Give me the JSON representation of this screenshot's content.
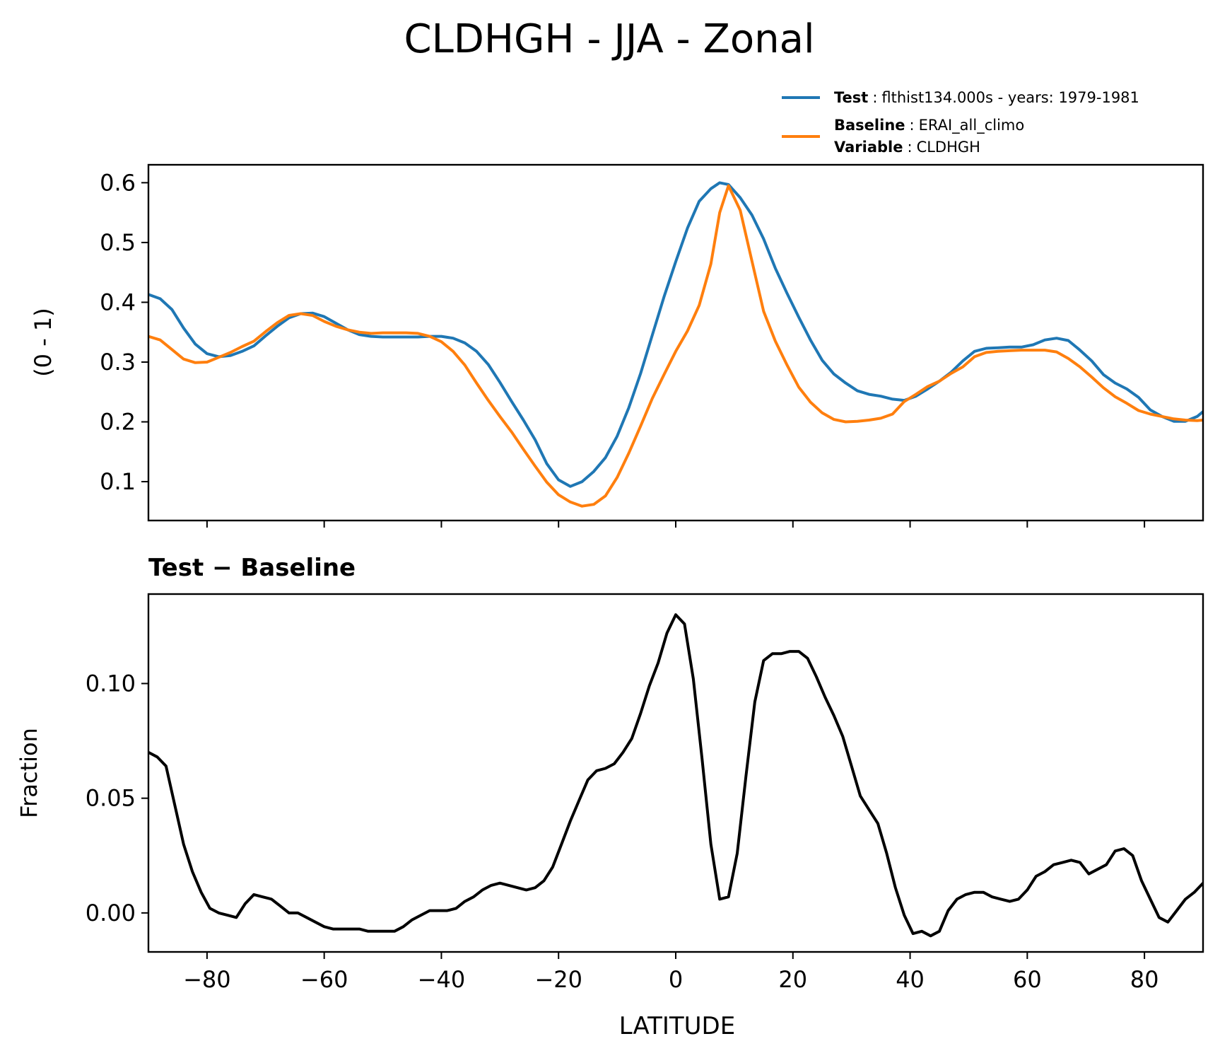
{
  "chart_data": [
    {
      "type": "line",
      "title": "CLDHGH - JJA - Zonal",
      "xlabel": "",
      "ylabel": "(0 - 1)",
      "xlim": [
        -90,
        90
      ],
      "ylim": [
        0.035,
        0.63
      ],
      "yticks": [
        0.1,
        0.2,
        0.3,
        0.4,
        0.5,
        0.6
      ],
      "ytick_labels": [
        "0.1",
        "0.2",
        "0.3",
        "0.4",
        "0.5",
        "0.6"
      ],
      "xticks": [
        -80,
        -60,
        -40,
        -20,
        0,
        20,
        40,
        60,
        80
      ],
      "grid": false,
      "legend": {
        "placement": "above-right",
        "entries": [
          {
            "lines": [
              {
                "key": "Test",
                "value": "flthist134.000s - years: 1979-1981"
              }
            ],
            "color": "#1f77b4"
          },
          {
            "lines": [
              {
                "key": "Baseline",
                "value": "ERAI_all_climo"
              },
              {
                "key": "Variable",
                "value": "CLDHGH"
              }
            ],
            "color": "#ff7f0e"
          }
        ]
      },
      "series": [
        {
          "name": "Test",
          "color": "#1f77b4",
          "x": [
            -90,
            -88,
            -86,
            -84,
            -82,
            -80,
            -78,
            -76,
            -74,
            -72,
            -70,
            -68,
            -66,
            -64,
            -62,
            -60,
            -58,
            -56,
            -54,
            -52,
            -50,
            -48,
            -46,
            -44,
            -42,
            -40,
            -38,
            -36,
            -34,
            -32,
            -30,
            -28,
            -26,
            -24,
            -22,
            -20,
            -18,
            -16,
            -14,
            -12,
            -10,
            -8,
            -6,
            -4,
            -2,
            0,
            2,
            4,
            6,
            7.5,
            9,
            11,
            13,
            15,
            17,
            19,
            21,
            23,
            25,
            27,
            29,
            31,
            33,
            35,
            37,
            39,
            41,
            43,
            45,
            47,
            49,
            51,
            53,
            55,
            57,
            59,
            61,
            63,
            65,
            67,
            69,
            71,
            73,
            75,
            77,
            79,
            81,
            83,
            85,
            87,
            89,
            90
          ],
          "values": [
            0.413,
            0.406,
            0.388,
            0.357,
            0.33,
            0.314,
            0.309,
            0.311,
            0.318,
            0.327,
            0.344,
            0.36,
            0.374,
            0.381,
            0.382,
            0.376,
            0.365,
            0.354,
            0.346,
            0.343,
            0.342,
            0.342,
            0.342,
            0.342,
            0.343,
            0.343,
            0.34,
            0.332,
            0.318,
            0.296,
            0.266,
            0.234,
            0.203,
            0.17,
            0.13,
            0.103,
            0.092,
            0.1,
            0.117,
            0.14,
            0.176,
            0.224,
            0.281,
            0.345,
            0.409,
            0.468,
            0.524,
            0.569,
            0.59,
            0.6,
            0.597,
            0.575,
            0.546,
            0.506,
            0.457,
            0.415,
            0.375,
            0.337,
            0.303,
            0.28,
            0.265,
            0.252,
            0.246,
            0.243,
            0.238,
            0.236,
            0.243,
            0.255,
            0.268,
            0.283,
            0.302,
            0.318,
            0.323,
            0.324,
            0.325,
            0.325,
            0.329,
            0.337,
            0.34,
            0.336,
            0.32,
            0.302,
            0.279,
            0.265,
            0.255,
            0.241,
            0.22,
            0.209,
            0.201,
            0.201,
            0.209,
            0.217
          ]
        },
        {
          "name": "Baseline",
          "color": "#ff7f0e",
          "x": [
            -90,
            -88,
            -86,
            -84,
            -82,
            -80,
            -78,
            -76,
            -74,
            -72,
            -70,
            -68,
            -66,
            -64,
            -62,
            -60,
            -58,
            -56,
            -54,
            -52,
            -50,
            -48,
            -46,
            -44,
            -42,
            -40,
            -38,
            -36,
            -34,
            -32,
            -30,
            -28,
            -26,
            -24,
            -22,
            -20,
            -18,
            -16,
            -14,
            -12,
            -10,
            -8,
            -6,
            -4,
            -2,
            0,
            2,
            4,
            6,
            7.5,
            9,
            11,
            13,
            15,
            17,
            19,
            21,
            23,
            25,
            27,
            29,
            31,
            33,
            35,
            37,
            39,
            41,
            43,
            45,
            47,
            49,
            51,
            53,
            55,
            57,
            59,
            61,
            63,
            65,
            67,
            69,
            71,
            73,
            75,
            77,
            79,
            81,
            83,
            85,
            87,
            89,
            90
          ],
          "values": [
            0.343,
            0.337,
            0.321,
            0.305,
            0.299,
            0.3,
            0.308,
            0.316,
            0.326,
            0.335,
            0.351,
            0.366,
            0.378,
            0.381,
            0.378,
            0.368,
            0.36,
            0.354,
            0.35,
            0.348,
            0.349,
            0.349,
            0.349,
            0.348,
            0.343,
            0.334,
            0.318,
            0.295,
            0.265,
            0.236,
            0.209,
            0.183,
            0.154,
            0.126,
            0.099,
            0.078,
            0.066,
            0.059,
            0.062,
            0.076,
            0.107,
            0.148,
            0.193,
            0.239,
            0.279,
            0.318,
            0.352,
            0.395,
            0.464,
            0.55,
            0.595,
            0.554,
            0.469,
            0.385,
            0.335,
            0.295,
            0.258,
            0.233,
            0.215,
            0.204,
            0.2,
            0.201,
            0.203,
            0.206,
            0.213,
            0.234,
            0.246,
            0.259,
            0.268,
            0.281,
            0.292,
            0.309,
            0.316,
            0.318,
            0.319,
            0.32,
            0.32,
            0.32,
            0.317,
            0.306,
            0.292,
            0.275,
            0.257,
            0.242,
            0.231,
            0.219,
            0.213,
            0.209,
            0.205,
            0.203,
            0.202,
            0.203
          ]
        }
      ]
    },
    {
      "type": "line",
      "title": "Test − Baseline",
      "xlabel": "LATITUDE",
      "ylabel": "Fraction",
      "xlim": [
        -90,
        90
      ],
      "ylim": [
        -0.017,
        0.139
      ],
      "yticks": [
        0.0,
        0.05,
        0.1
      ],
      "ytick_labels": [
        "0.00",
        "0.05",
        "0.10"
      ],
      "xticks": [
        -80,
        -60,
        -40,
        -20,
        0,
        20,
        40,
        60,
        80
      ],
      "xtick_labels": [
        "−80",
        "−60",
        "−40",
        "−20",
        "0",
        "20",
        "40",
        "60",
        "80"
      ],
      "grid": false,
      "series": [
        {
          "color": "#000000",
          "x": [
            -90,
            -88.5,
            -87,
            -85.5,
            -84,
            -82.5,
            -81,
            -79.5,
            -78,
            -76.5,
            -75,
            -73.5,
            -72,
            -70.5,
            -69,
            -67.5,
            -66,
            -64.5,
            -63,
            -61.5,
            -60,
            -58.5,
            -57,
            -55.5,
            -54,
            -52.5,
            -51,
            -49.5,
            -48,
            -46.5,
            -45,
            -43.5,
            -42,
            -40.5,
            -39,
            -37.5,
            -36,
            -34.5,
            -33,
            -31.5,
            -30,
            -28.5,
            -27,
            -25.5,
            -24,
            -22.5,
            -21,
            -19.5,
            -18,
            -16.5,
            -15,
            -13.5,
            -12,
            -10.5,
            -9,
            -7.5,
            -6,
            -4.5,
            -3,
            -1.5,
            0,
            1.5,
            3,
            4.5,
            6,
            7.5,
            9,
            10.5,
            12,
            13.5,
            15,
            16.5,
            18,
            19.5,
            21,
            22.5,
            24,
            25.5,
            27,
            28.5,
            30,
            31.5,
            33,
            34.5,
            36,
            37.5,
            39,
            40.5,
            42,
            43.5,
            45,
            46.5,
            48,
            49.5,
            51,
            52.5,
            54,
            55.5,
            57,
            58.5,
            60,
            61.5,
            63,
            64.5,
            66,
            67.5,
            69,
            70.5,
            72,
            73.5,
            75,
            76.5,
            78,
            79.5,
            81,
            82.5,
            84,
            85.5,
            87,
            88.5,
            90
          ],
          "values": [
            0.07,
            0.068,
            0.064,
            0.047,
            0.03,
            0.018,
            0.009,
            0.002,
            0.0,
            -0.001,
            -0.002,
            0.004,
            0.008,
            0.007,
            0.006,
            0.003,
            0.0,
            0.0,
            -0.002,
            -0.004,
            -0.006,
            -0.007,
            -0.007,
            -0.007,
            -0.007,
            -0.008,
            -0.008,
            -0.008,
            -0.008,
            -0.006,
            -0.003,
            -0.001,
            0.001,
            0.001,
            0.001,
            0.002,
            0.005,
            0.007,
            0.01,
            0.012,
            0.013,
            0.012,
            0.011,
            0.01,
            0.011,
            0.014,
            0.02,
            0.03,
            0.04,
            0.049,
            0.058,
            0.062,
            0.063,
            0.065,
            0.07,
            0.076,
            0.087,
            0.099,
            0.109,
            0.122,
            0.13,
            0.126,
            0.102,
            0.067,
            0.03,
            0.006,
            0.007,
            0.026,
            0.06,
            0.092,
            0.11,
            0.113,
            0.113,
            0.114,
            0.114,
            0.111,
            0.103,
            0.094,
            0.086,
            0.077,
            0.064,
            0.051,
            0.045,
            0.039,
            0.026,
            0.011,
            -0.001,
            -0.009,
            -0.008,
            -0.01,
            -0.008,
            0.001,
            0.006,
            0.008,
            0.009,
            0.009,
            0.007,
            0.006,
            0.005,
            0.006,
            0.01,
            0.016,
            0.018,
            0.021,
            0.022,
            0.023,
            0.022,
            0.017,
            0.019,
            0.021,
            0.027,
            0.028,
            0.025,
            0.014,
            0.006,
            -0.002,
            -0.004,
            0.001,
            0.006,
            0.009,
            0.013
          ]
        }
      ]
    }
  ]
}
